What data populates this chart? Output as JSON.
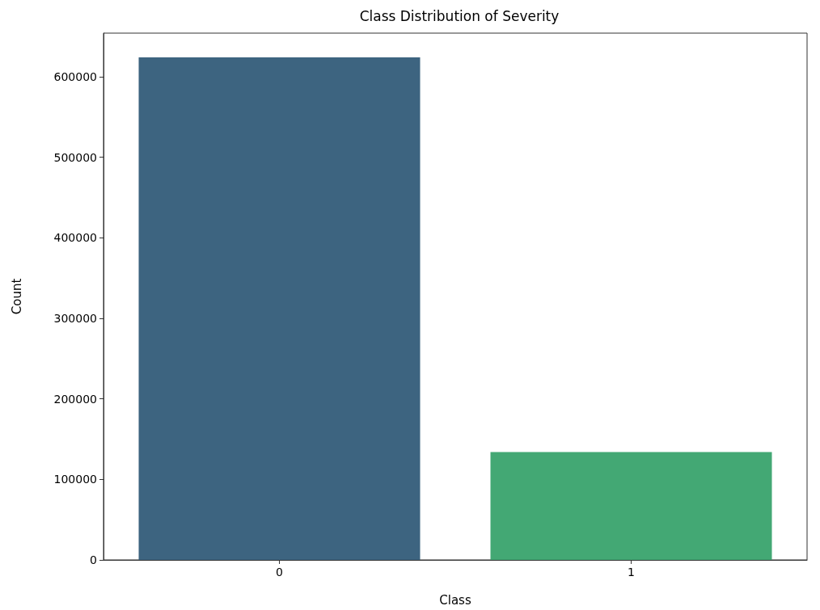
{
  "chart_data": {
    "type": "bar",
    "title": "Class Distribution of Severity",
    "xlabel": "Class",
    "ylabel": "Count",
    "categories": [
      "0",
      "1"
    ],
    "values": [
      624000,
      134000
    ],
    "colors": [
      "#3d6480",
      "#43a874"
    ],
    "ylim": [
      0,
      654000
    ],
    "yticks": [
      0,
      100000,
      200000,
      300000,
      400000,
      500000,
      600000
    ],
    "grid": false
  }
}
